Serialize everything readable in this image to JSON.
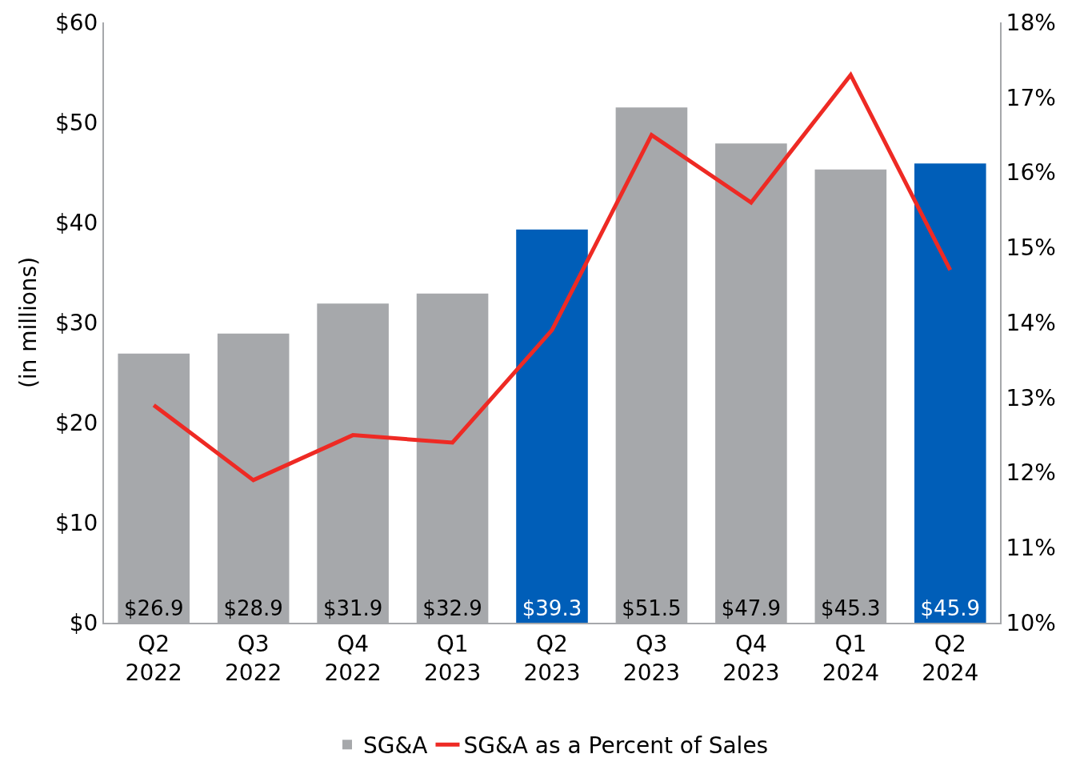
{
  "chart_data": {
    "type": "bar",
    "categories": [
      "Q2 2022",
      "Q3 2022",
      "Q4 2022",
      "Q1 2023",
      "Q2 2023",
      "Q3 2023",
      "Q4 2023",
      "Q1 2024",
      "Q2 2024"
    ],
    "ylabel": "(in millions)",
    "ylim": [
      0,
      60
    ],
    "yticks": [
      {
        "value": 0,
        "label": "$0"
      },
      {
        "value": 10,
        "label": "$10"
      },
      {
        "value": 20,
        "label": "$20"
      },
      {
        "value": 30,
        "label": "$30"
      },
      {
        "value": 40,
        "label": "$40"
      },
      {
        "value": 50,
        "label": "$50"
      },
      {
        "value": 60,
        "label": "$60"
      }
    ],
    "y2lim": [
      10,
      18
    ],
    "y2ticks": [
      {
        "value": 10,
        "label": "10%"
      },
      {
        "value": 11,
        "label": "11%"
      },
      {
        "value": 12,
        "label": "12%"
      },
      {
        "value": 13,
        "label": "13%"
      },
      {
        "value": 14,
        "label": "14%"
      },
      {
        "value": 15,
        "label": "15%"
      },
      {
        "value": 16,
        "label": "16%"
      },
      {
        "value": 17,
        "label": "17%"
      },
      {
        "value": 18,
        "label": "18%"
      }
    ],
    "series": [
      {
        "name": "SG&A",
        "colors": [
          "#a6a8ab",
          "#a6a8ab",
          "#a6a8ab",
          "#a6a8ab",
          "#005eb8",
          "#a6a8ab",
          "#a6a8ab",
          "#a6a8ab",
          "#005eb8"
        ],
        "values": [
          26.9,
          28.9,
          31.9,
          32.9,
          39.3,
          51.5,
          47.9,
          45.3,
          45.9
        ],
        "value_labels": [
          "$26.9",
          "$28.9",
          "$31.9",
          "$32.9",
          "$39.3",
          "$51.5",
          "$47.9",
          "$45.3",
          "$45.9"
        ]
      },
      {
        "name": "SG&A as a Percent of Sales",
        "type": "line",
        "axis": "y2",
        "color": "#ee2a24",
        "values": [
          12.9,
          11.9,
          12.5,
          12.4,
          13.9,
          16.5,
          15.6,
          17.3,
          14.7
        ]
      }
    ],
    "legend": "bottom",
    "marker": "none"
  }
}
